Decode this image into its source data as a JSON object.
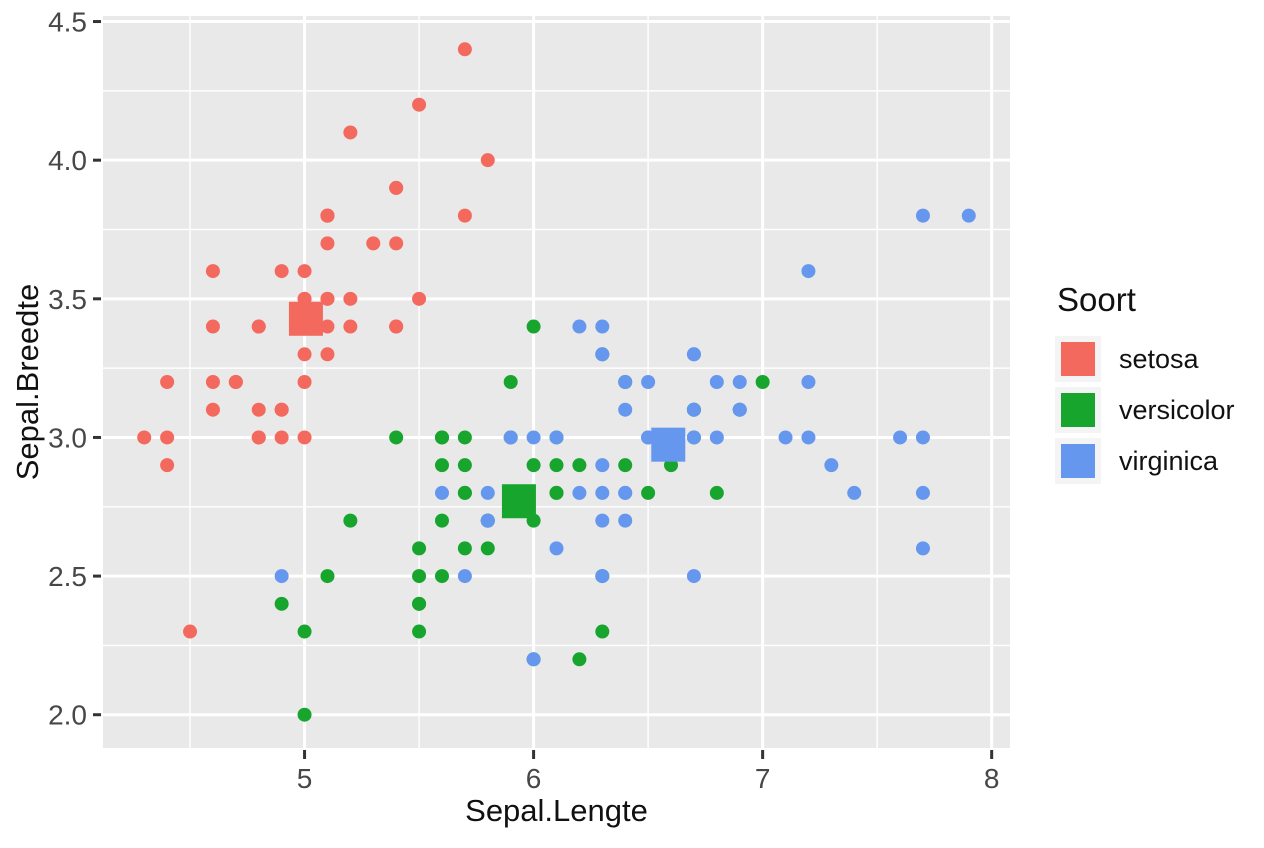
{
  "chart_data": {
    "type": "scatter",
    "xlabel": "Sepal.Lengte",
    "ylabel": "Sepal.Breedte",
    "xlim": [
      4.12,
      8.08
    ],
    "ylim": [
      1.88,
      4.52
    ],
    "x_ticks": [
      5,
      6,
      7,
      8
    ],
    "x_tick_labels": [
      "5",
      "6",
      "7",
      "8"
    ],
    "y_ticks": [
      2.0,
      2.5,
      3.0,
      3.5,
      4.0,
      4.5
    ],
    "y_tick_labels": [
      "2.0",
      "2.5",
      "3.0",
      "3.5",
      "4.0",
      "4.5"
    ],
    "x_minor": [
      4.5,
      5.5,
      6.5,
      7.5
    ],
    "y_minor": [
      2.25,
      2.75,
      3.25,
      3.75,
      4.25
    ],
    "grid": true,
    "panel_background": "#E9E9E9",
    "gridline_color": "#FFFFFF",
    "tick_color": "#333333",
    "tick_label_color": "#474747",
    "legend": {
      "title": "Soort",
      "position": "right",
      "key_background": "#F4F4F4"
    },
    "marker": {
      "point_radius": 7,
      "centroid_size": 34
    },
    "series": [
      {
        "name": "setosa",
        "color": "#F4695E",
        "centroid": [
          5.006,
          3.428
        ],
        "points": [
          [
            5.1,
            3.5
          ],
          [
            4.9,
            3.0
          ],
          [
            4.7,
            3.2
          ],
          [
            4.6,
            3.1
          ],
          [
            5.0,
            3.6
          ],
          [
            5.4,
            3.9
          ],
          [
            4.6,
            3.4
          ],
          [
            5.0,
            3.4
          ],
          [
            4.4,
            2.9
          ],
          [
            4.9,
            3.1
          ],
          [
            5.4,
            3.7
          ],
          [
            4.8,
            3.4
          ],
          [
            4.8,
            3.0
          ],
          [
            4.3,
            3.0
          ],
          [
            5.8,
            4.0
          ],
          [
            5.7,
            4.4
          ],
          [
            5.4,
            3.9
          ],
          [
            5.1,
            3.5
          ],
          [
            5.7,
            3.8
          ],
          [
            5.1,
            3.8
          ],
          [
            5.4,
            3.4
          ],
          [
            5.1,
            3.7
          ],
          [
            4.6,
            3.6
          ],
          [
            5.1,
            3.3
          ],
          [
            4.8,
            3.4
          ],
          [
            5.0,
            3.0
          ],
          [
            5.0,
            3.4
          ],
          [
            5.2,
            3.5
          ],
          [
            5.2,
            3.4
          ],
          [
            4.7,
            3.2
          ],
          [
            4.8,
            3.1
          ],
          [
            5.4,
            3.4
          ],
          [
            5.2,
            4.1
          ],
          [
            5.5,
            4.2
          ],
          [
            4.9,
            3.1
          ],
          [
            5.0,
            3.2
          ],
          [
            5.5,
            3.5
          ],
          [
            4.9,
            3.6
          ],
          [
            4.4,
            3.0
          ],
          [
            5.1,
            3.4
          ],
          [
            5.0,
            3.5
          ],
          [
            4.5,
            2.3
          ],
          [
            4.4,
            3.2
          ],
          [
            5.0,
            3.5
          ],
          [
            5.1,
            3.8
          ],
          [
            4.8,
            3.0
          ],
          [
            5.1,
            3.8
          ],
          [
            4.6,
            3.2
          ],
          [
            5.3,
            3.7
          ],
          [
            5.0,
            3.3
          ]
        ]
      },
      {
        "name": "versicolor",
        "color": "#17A52E",
        "centroid": [
          5.936,
          2.77
        ],
        "points": [
          [
            7.0,
            3.2
          ],
          [
            6.4,
            3.2
          ],
          [
            6.9,
            3.1
          ],
          [
            5.5,
            2.3
          ],
          [
            6.5,
            2.8
          ],
          [
            5.7,
            2.8
          ],
          [
            6.3,
            3.3
          ],
          [
            4.9,
            2.4
          ],
          [
            6.6,
            2.9
          ],
          [
            5.2,
            2.7
          ],
          [
            5.0,
            2.0
          ],
          [
            5.9,
            3.0
          ],
          [
            6.0,
            2.2
          ],
          [
            6.1,
            2.9
          ],
          [
            5.6,
            2.9
          ],
          [
            6.7,
            3.1
          ],
          [
            5.6,
            3.0
          ],
          [
            5.8,
            2.7
          ],
          [
            6.2,
            2.2
          ],
          [
            5.6,
            2.5
          ],
          [
            5.9,
            3.2
          ],
          [
            6.1,
            2.8
          ],
          [
            6.3,
            2.5
          ],
          [
            6.1,
            2.8
          ],
          [
            6.4,
            2.9
          ],
          [
            6.6,
            3.0
          ],
          [
            6.8,
            2.8
          ],
          [
            6.7,
            3.0
          ],
          [
            6.0,
            2.9
          ],
          [
            5.7,
            2.6
          ],
          [
            5.5,
            2.4
          ],
          [
            5.5,
            2.4
          ],
          [
            5.8,
            2.7
          ],
          [
            6.0,
            2.7
          ],
          [
            5.4,
            3.0
          ],
          [
            6.0,
            3.4
          ],
          [
            6.7,
            3.1
          ],
          [
            6.3,
            2.3
          ],
          [
            5.6,
            3.0
          ],
          [
            5.5,
            2.5
          ],
          [
            5.5,
            2.6
          ],
          [
            6.1,
            3.0
          ],
          [
            5.8,
            2.6
          ],
          [
            5.0,
            2.3
          ],
          [
            5.6,
            2.7
          ],
          [
            5.7,
            3.0
          ],
          [
            5.7,
            2.9
          ],
          [
            6.2,
            2.9
          ],
          [
            5.1,
            2.5
          ],
          [
            5.7,
            2.8
          ]
        ]
      },
      {
        "name": "virginica",
        "color": "#6697EE",
        "centroid": [
          6.588,
          2.974
        ],
        "points": [
          [
            6.3,
            3.3
          ],
          [
            5.8,
            2.7
          ],
          [
            7.1,
            3.0
          ],
          [
            6.3,
            2.9
          ],
          [
            6.5,
            3.0
          ],
          [
            7.6,
            3.0
          ],
          [
            4.9,
            2.5
          ],
          [
            7.3,
            2.9
          ],
          [
            6.7,
            2.5
          ],
          [
            7.2,
            3.6
          ],
          [
            6.5,
            3.2
          ],
          [
            6.4,
            2.7
          ],
          [
            6.8,
            3.0
          ],
          [
            5.7,
            2.5
          ],
          [
            5.8,
            2.8
          ],
          [
            6.4,
            3.2
          ],
          [
            6.5,
            3.0
          ],
          [
            7.7,
            3.8
          ],
          [
            7.7,
            2.6
          ],
          [
            6.0,
            2.2
          ],
          [
            6.9,
            3.2
          ],
          [
            5.6,
            2.8
          ],
          [
            7.7,
            2.8
          ],
          [
            6.3,
            2.7
          ],
          [
            6.7,
            3.3
          ],
          [
            7.2,
            3.2
          ],
          [
            6.2,
            2.8
          ],
          [
            6.1,
            3.0
          ],
          [
            6.4,
            2.8
          ],
          [
            7.2,
            3.0
          ],
          [
            7.4,
            2.8
          ],
          [
            7.9,
            3.8
          ],
          [
            6.4,
            2.8
          ],
          [
            6.3,
            2.8
          ],
          [
            6.1,
            2.6
          ],
          [
            7.7,
            3.0
          ],
          [
            6.3,
            3.4
          ],
          [
            6.4,
            3.1
          ],
          [
            6.0,
            3.0
          ],
          [
            6.9,
            3.1
          ],
          [
            6.7,
            3.1
          ],
          [
            6.9,
            3.1
          ],
          [
            5.8,
            2.7
          ],
          [
            6.8,
            3.2
          ],
          [
            6.7,
            3.3
          ],
          [
            6.7,
            3.0
          ],
          [
            6.3,
            2.5
          ],
          [
            6.5,
            3.0
          ],
          [
            6.2,
            3.4
          ],
          [
            5.9,
            3.0
          ]
        ]
      }
    ]
  }
}
